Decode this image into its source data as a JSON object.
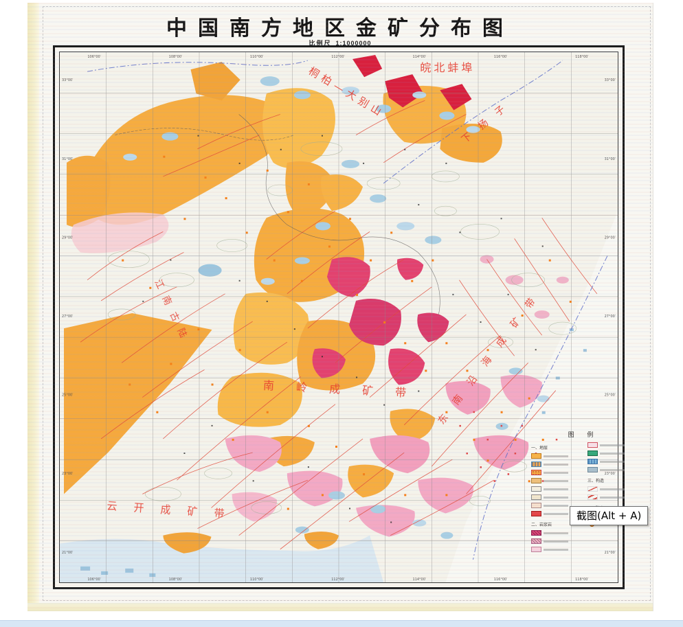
{
  "window": {
    "tooltip_label": "截图(Alt + A)"
  },
  "map": {
    "title": "中国南方地区金矿分布图",
    "scale_label": "比例尺",
    "scale_value": "1:1000000",
    "region_labels": [
      {
        "id": "wanbei-bengbu",
        "text": "皖北蚌埠"
      },
      {
        "id": "tongbai-dabieshan",
        "text": "桐柏—大别山"
      },
      {
        "id": "xia-yangzi",
        "text": "下扬子"
      },
      {
        "id": "jiangnan-gulu",
        "text": "江南古陆"
      },
      {
        "id": "nanling-belt",
        "text": "南岭成矿带"
      },
      {
        "id": "southeast-coast-belt",
        "text": "东南沿海成矿带"
      },
      {
        "id": "yunkai-belt",
        "text": "云开成矿带"
      }
    ],
    "graticule": {
      "lon_labels": [
        "106°00′",
        "108°00′",
        "110°00′",
        "112°00′",
        "114°00′",
        "116°00′",
        "118°00′"
      ],
      "lat_labels": [
        "33°00′",
        "31°00′",
        "29°00′",
        "27°00′",
        "25°00′",
        "23°00′",
        "21°00′"
      ]
    },
    "legend": {
      "title": "图 例",
      "columns": [
        {
          "rows": [
            {
              "kind": "header",
              "text": "一、地层"
            },
            {
              "kind": "swatch",
              "color": "#f7b448",
              "border": "#c07818"
            },
            {
              "kind": "swatch",
              "color": "#f0a850",
              "pattern": "stripes",
              "border": "#4a88b8"
            },
            {
              "kind": "swatch",
              "color": "#f3a640",
              "pattern": "dots",
              "border": "#d04040"
            },
            {
              "kind": "swatch",
              "color": "#eec07a",
              "border": "#b08030"
            },
            {
              "kind": "swatch",
              "color": "#f4efdf",
              "border": "#8a8a8a"
            },
            {
              "kind": "swatch",
              "color": "#f4e8cd",
              "border": "#8a8a8a"
            },
            {
              "kind": "swatch",
              "color": "#f8e0cc",
              "border": "#aa8888"
            },
            {
              "kind": "swatch",
              "color": "#e64545",
              "border": "#a02020"
            },
            {
              "kind": "header",
              "text": "二、岩浆岩"
            },
            {
              "kind": "swatch",
              "color": "#e0437a",
              "pattern": "hatch",
              "border": "#902050"
            },
            {
              "kind": "swatch",
              "color": "#f4afc6",
              "pattern": "hatch",
              "border": "#b06080"
            },
            {
              "kind": "swatch",
              "color": "#f8d3de",
              "border": "#c08098"
            }
          ]
        },
        {
          "rows": [
            {
              "kind": "swatch",
              "color": "#fae3e8",
              "border": "#d05060"
            },
            {
              "kind": "swatch",
              "color": "#35a878",
              "border": "#1a6848"
            },
            {
              "kind": "swatch",
              "color": "#7fb9d9",
              "pattern": "stripes",
              "border": "#3a78a8"
            },
            {
              "kind": "swatch",
              "color": "#a8bfcc",
              "border": "#688898"
            },
            {
              "kind": "header",
              "text": "三、构造"
            },
            {
              "kind": "line",
              "style": "solid"
            },
            {
              "kind": "line",
              "style": "dashed"
            },
            {
              "kind": "header",
              "text": "四、矿产"
            },
            {
              "kind": "square"
            },
            {
              "kind": "dot"
            }
          ]
        }
      ]
    },
    "palette": {
      "orange_strata": "#f5a93d",
      "yellow_strata": "#f9bd4e",
      "magenta_intrusive": "#e2426f",
      "pink_intrusive": "#f3a9c4",
      "crimson_volcanic": "#d8203e",
      "light_blue_strata": "#a9cfe3",
      "fault_red": "#e04a3a",
      "boundary_blue": "#5a6cc8",
      "label_red": "#e63a2c",
      "sea_blue": "#d7e7f1"
    }
  }
}
